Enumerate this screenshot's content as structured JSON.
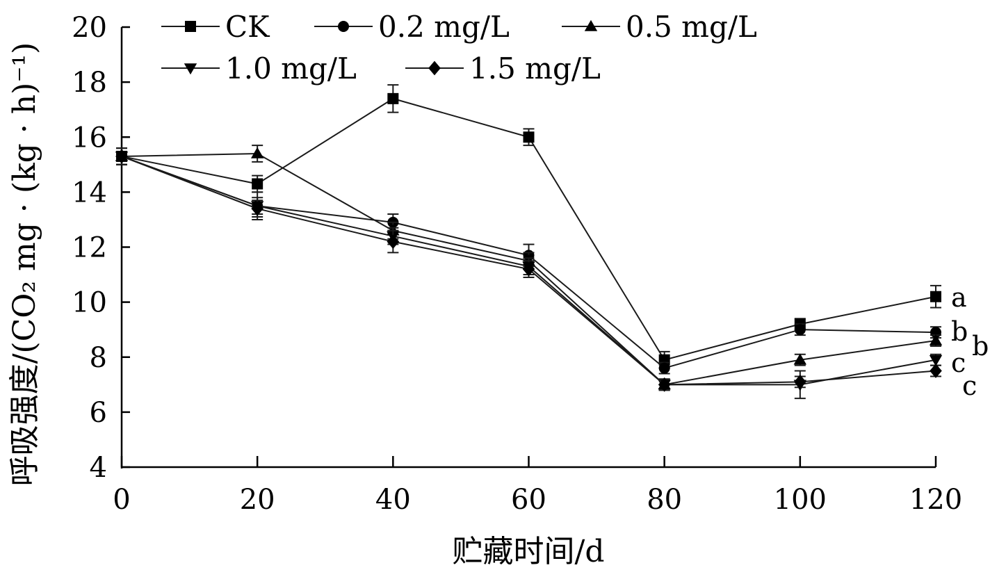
{
  "chart_data": {
    "type": "line",
    "xlabel": "贮藏时间/d",
    "ylabel": "呼吸强度/(CO₂ mg · (kg · h)⁻¹)",
    "xlim": [
      0,
      120
    ],
    "ylim": [
      4,
      20
    ],
    "x_ticks": [
      0,
      20,
      40,
      60,
      80,
      100,
      120
    ],
    "y_ticks": [
      4,
      6,
      8,
      10,
      12,
      14,
      16,
      18,
      20
    ],
    "x": [
      0,
      20,
      40,
      60,
      80,
      100,
      120
    ],
    "grid": false,
    "legend_position": "top",
    "series": [
      {
        "name": "CK",
        "marker": "square",
        "values": [
          15.3,
          14.3,
          17.4,
          16.0,
          7.9,
          9.2,
          10.2
        ],
        "errors": [
          0.3,
          0.3,
          0.5,
          0.3,
          0.3,
          0.2,
          0.4
        ]
      },
      {
        "name": "0.2 mg/L",
        "marker": "circle",
        "values": [
          15.3,
          13.5,
          12.9,
          11.7,
          7.6,
          9.0,
          8.9
        ],
        "errors": [
          0.3,
          0.3,
          0.3,
          0.4,
          0.2,
          0.2,
          0.2
        ]
      },
      {
        "name": "0.5 mg/L",
        "marker": "triangle-up",
        "values": [
          15.3,
          15.4,
          12.6,
          11.5,
          7.0,
          7.9,
          8.6
        ],
        "errors": [
          0.3,
          0.3,
          0.3,
          0.3,
          0.2,
          0.2,
          0.2
        ]
      },
      {
        "name": "1.0 mg/L",
        "marker": "triangle-down",
        "values": [
          15.3,
          13.5,
          12.4,
          11.3,
          7.0,
          7.0,
          7.9
        ],
        "errors": [
          0.3,
          0.5,
          0.3,
          0.3,
          0.2,
          0.5,
          0.2
        ]
      },
      {
        "name": "1.5 mg/L",
        "marker": "diamond",
        "values": [
          15.3,
          13.4,
          12.2,
          11.2,
          7.0,
          7.1,
          7.5
        ],
        "errors": [
          0.3,
          0.3,
          0.4,
          0.3,
          0.2,
          0.2,
          0.2
        ]
      }
    ],
    "annotations": [
      "a",
      "b",
      "b",
      "c",
      "c"
    ]
  }
}
